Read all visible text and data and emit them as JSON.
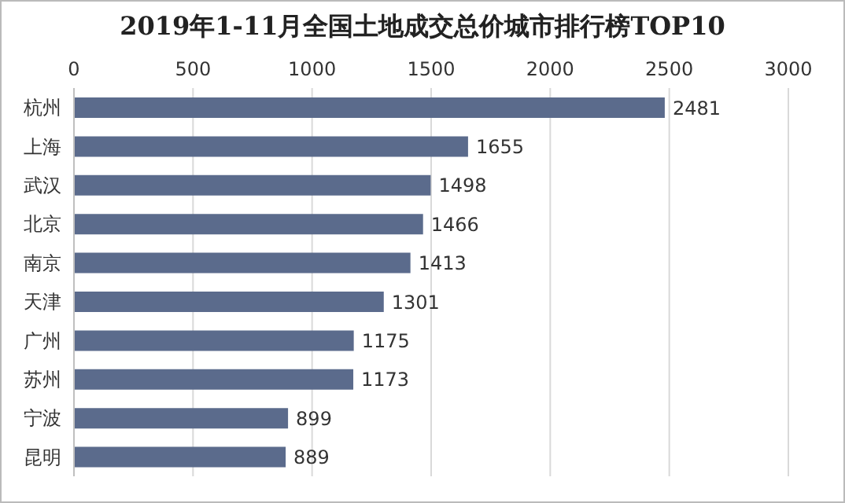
{
  "chart_data": {
    "type": "bar",
    "orientation": "horizontal",
    "title": "2019年1-11月全国土地成交总价城市排行榜TOP10",
    "categories": [
      "杭州",
      "上海",
      "武汉",
      "北京",
      "南京",
      "天津",
      "广州",
      "苏州",
      "宁波",
      "昆明"
    ],
    "values": [
      2481,
      1655,
      1498,
      1466,
      1413,
      1301,
      1175,
      1173,
      899,
      889
    ],
    "color": "#5b6b8c",
    "xlim": [
      0,
      3000
    ],
    "xticks": [
      0,
      500,
      1000,
      1500,
      2000,
      2500,
      3000
    ],
    "grid": "x",
    "data_labels": true
  }
}
